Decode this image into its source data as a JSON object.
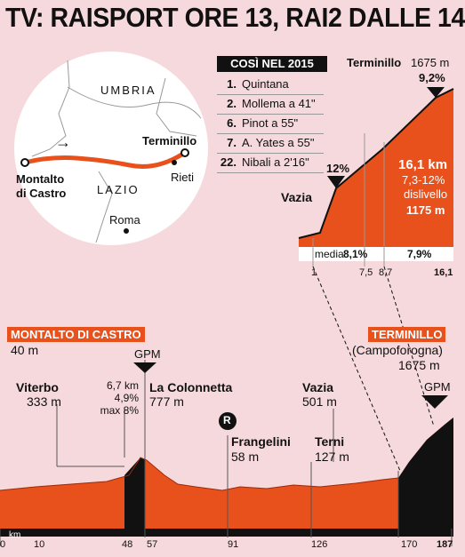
{
  "headline": "TV: RAISPORT ORE 13, RAI2 DALLE 14",
  "map": {
    "region_north": "UMBRIA",
    "region_south": "LAZIO",
    "start": "Montalto\ndi Castro",
    "finish": "Terminillo",
    "city1": "Rieti",
    "city2": "Roma",
    "direction_arrow": "→"
  },
  "standings": {
    "title": "COSÌ NEL 2015",
    "rows": [
      {
        "pos": "1.",
        "text": "Quintana"
      },
      {
        "pos": "2.",
        "text": "Mollema a 41\""
      },
      {
        "pos": "6.",
        "text": "Pinot a 55\""
      },
      {
        "pos": "7.",
        "text": "A. Yates a 55\""
      },
      {
        "pos": "22.",
        "text": "Nibali a 2'16\""
      }
    ]
  },
  "climb": {
    "summit": "Terminillo",
    "summit_alt": "1675 m",
    "max_grade": "9,2%",
    "mid_grade": "12%",
    "start": "Vazia",
    "length": "16,1 km",
    "grade_range": "7,3-12%",
    "gain_label": "dislivello",
    "gain": "1175 m",
    "avg_label": "media",
    "avg": "8,1%",
    "avg2": "7,9%",
    "km_ticks": [
      "1",
      "7,5",
      "8,7",
      "16,1"
    ]
  },
  "profile": {
    "start_name": "MONTALTO DI CASTRO",
    "start_alt": "40 m",
    "finish_name": "TERMINILLO",
    "finish_sub": "(Campoforogna)",
    "finish_alt": "1675 m",
    "gpm": "GPM",
    "climb1": [
      "6,7 km",
      "4,9%",
      "max 8%"
    ],
    "places": [
      {
        "name": "Viterbo",
        "alt": "333 m"
      },
      {
        "name": "La Colonnetta",
        "alt": "777 m"
      },
      {
        "name": "Frangelini",
        "alt": "58 m"
      },
      {
        "name": "Vazia",
        "alt": "501 m"
      },
      {
        "name": "Terni",
        "alt": "127 m"
      }
    ],
    "r_marker": "R",
    "km_label": "km",
    "km": [
      "0",
      "10",
      "48",
      "57",
      "91",
      "126",
      "170",
      "187"
    ]
  },
  "colors": {
    "accent": "#e8511c",
    "dark": "#111111",
    "bg": "#f6d9dc"
  }
}
